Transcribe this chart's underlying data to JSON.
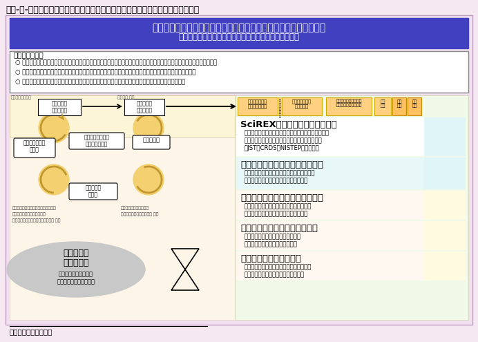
{
  "title_main": "第２-５-１図／科学技術イノベーション政策における「政策のための科学」の推進",
  "header_title": "科学技術イノベーション政策における「政策のための科学」の推進",
  "header_subtitle": "～客観的根拠に基づく合理的な政策決定のための科学～",
  "header_bg": "#4040c0",
  "header_text_color": "#ffffff",
  "main_bg": "#f5e8f0",
  "content_bg": "#ffffff",
  "left_bg": "#fdf5e0",
  "right_bg": "#e8f5f8",
  "right_orange_bg": "#fff0e0",
  "goal_border": "#888888",
  "goal_title": "事業全体の目標",
  "goal_items": [
    "様々な社会的課題のうち、科学技術イノベーション政策によって解決すべき課題を科学的な視野から発見・発掘すること。",
    "政策課題を同定し、経済的・社会的影響分析を盛り込んで選択可能な複数の政策オプションを立案すること。",
    "立案された政策オプションを適切に選択・決定・実施することにより、政策課題の解決を目指すこと。"
  ],
  "flow_boxes_top": [
    {
      "label": "政策の決定\n政策の実施",
      "bg": "#ffffff",
      "border": "#000000"
    },
    {
      "label": "政策課題の\n発見・発掘",
      "bg": "#ffffff",
      "border": "#000000"
    },
    {
      "label": "政策目標・手段\nのリストアップ",
      "bg": "#ffd080",
      "border": "#ccaa00"
    },
    {
      "label": "経済的・社会的\n影響の分析",
      "bg": "#ffd080",
      "border": "#ccaa00"
    },
    {
      "label": "複数の選択肢からなる\n政策オプションの作成",
      "bg": "#ffd080",
      "border": "#ccaa00"
    },
    {
      "label": "合意\n形成",
      "bg": "#ffd080",
      "border": "#ccaa00"
    },
    {
      "label": "政策\n決定",
      "bg": "#ffc060",
      "border": "#cc8800"
    },
    {
      "label": "政策\n評価",
      "bg": "#ffc060",
      "border": "#cc8800"
    }
  ],
  "left_boxes": [
    {
      "label": "政策オプション\nの立案",
      "bg": "#ffffff",
      "border": "#000000"
    },
    {
      "label": "政策形成プロセス\nの基本的な構造",
      "bg": "#ffffff",
      "border": "#000000"
    },
    {
      "label": "社会・自然",
      "bg": "#ffffff",
      "border": "#000000"
    },
    {
      "label": "現状の把握\n・分析",
      "bg": "#ffffff",
      "border": "#000000"
    }
  ],
  "left_notes_left": [
    "・政策目標や政策手段のリストアップ",
    "・経済的・社会的影響の分析",
    "・複数の選択可能なオプション作成 など"
  ],
  "left_notes_right": [
    "・政策課題の発見・発掘",
    "・政策課題の同定・構造化 など"
  ],
  "ellipse_label1": "文部科学省",
  "ellipse_label2": "推進委員会",
  "ellipse_label3": "事業全体の進め方検討",
  "ellipse_label4": "事業全体関連の調査分析",
  "right_programs": [
    {
      "title": "SciREX政策形成実践プログラム",
      "bold": true,
      "lines": [
        "具体的な政策課題を設定し、政策課題に関した一貫性",
        "のある選択可能な政策オプション立案作業を実践",
        "（JST／CRDS、NISTEP等と協力）"
      ],
      "bg": "#e8f8f8"
    },
    {
      "title": "基盤的研究・人材育成拠点の形成",
      "bold": true,
      "lines": [
        "・大学院を中核とした国際水準の拠点を構築",
        "・拠点間共同プログラムの開発及び展開"
      ],
      "bg": "#e8f8f8"
    },
    {
      "title": "公募型研究開発プログラムの推進",
      "bold": true,
      "lines": [
        "中長期で政策形成に寄与しうる分析手法、",
        "指標開発等の研究開発を公募により推進"
      ],
      "bg": "#fff8e8"
    },
    {
      "title": "政策課題対応型調査研究の推進",
      "bold": true,
      "lines": [
        "研究開発投資の経済的、社会的波及",
        "効果に関する総合的な調査・分析"
      ],
      "bg": "#fff8e8"
    },
    {
      "title": "データ・情報基盤の構築",
      "bold": true,
      "lines": [
        "政策形成や調査・分析・研究に活用しうる",
        "データや情報を体系的・継続的に蓄積"
      ],
      "bg": "#fff8e8"
    }
  ],
  "source_text": "資料：文部科学省作成"
}
